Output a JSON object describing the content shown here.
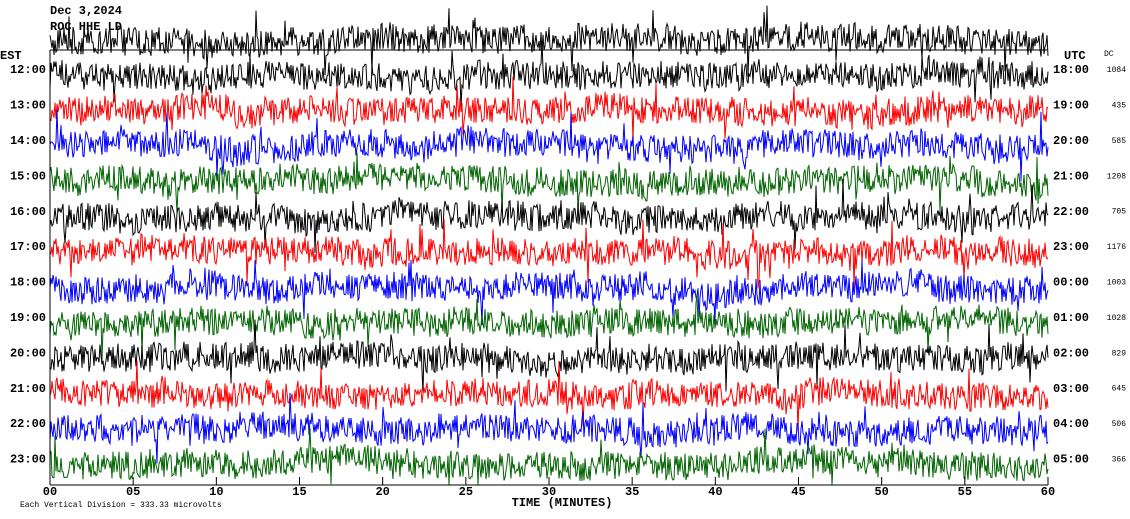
{
  "chart_data": {
    "type": "helicorder",
    "header": [
      "Dec 3,2024",
      "ROC HHE LD"
    ],
    "left_title": "EST",
    "right_title": "UTC",
    "dc_title": "DC",
    "rows": [
      "12:00",
      "13:00",
      "14:00",
      "15:00",
      "16:00",
      "17:00",
      "18:00",
      "19:00",
      "20:00",
      "21:00",
      "22:00",
      "23:00"
    ],
    "utc_rows": [
      "18:00",
      "19:00",
      "20:00",
      "21:00",
      "22:00",
      "23:00",
      "00:00",
      "01:00",
      "02:00",
      "03:00",
      "04:00",
      "05:00"
    ],
    "dc": [
      1084,
      435,
      585,
      1208,
      705,
      1176,
      1003,
      1028,
      829,
      645,
      506,
      366
    ],
    "colors": [
      "#000000",
      "#ff0000",
      "#0000ff",
      "#006400"
    ],
    "xlim": [
      0,
      60
    ],
    "xticks": [
      {
        "value": 0,
        "label": "00"
      },
      {
        "value": 5,
        "label": "05"
      },
      10,
      15,
      20,
      25,
      30,
      35,
      40,
      45,
      50,
      55,
      60
    ],
    "xlabel": "TIME (MINUTES)",
    "footer": "Each Vertical Division =  333.33 microvolts"
  }
}
